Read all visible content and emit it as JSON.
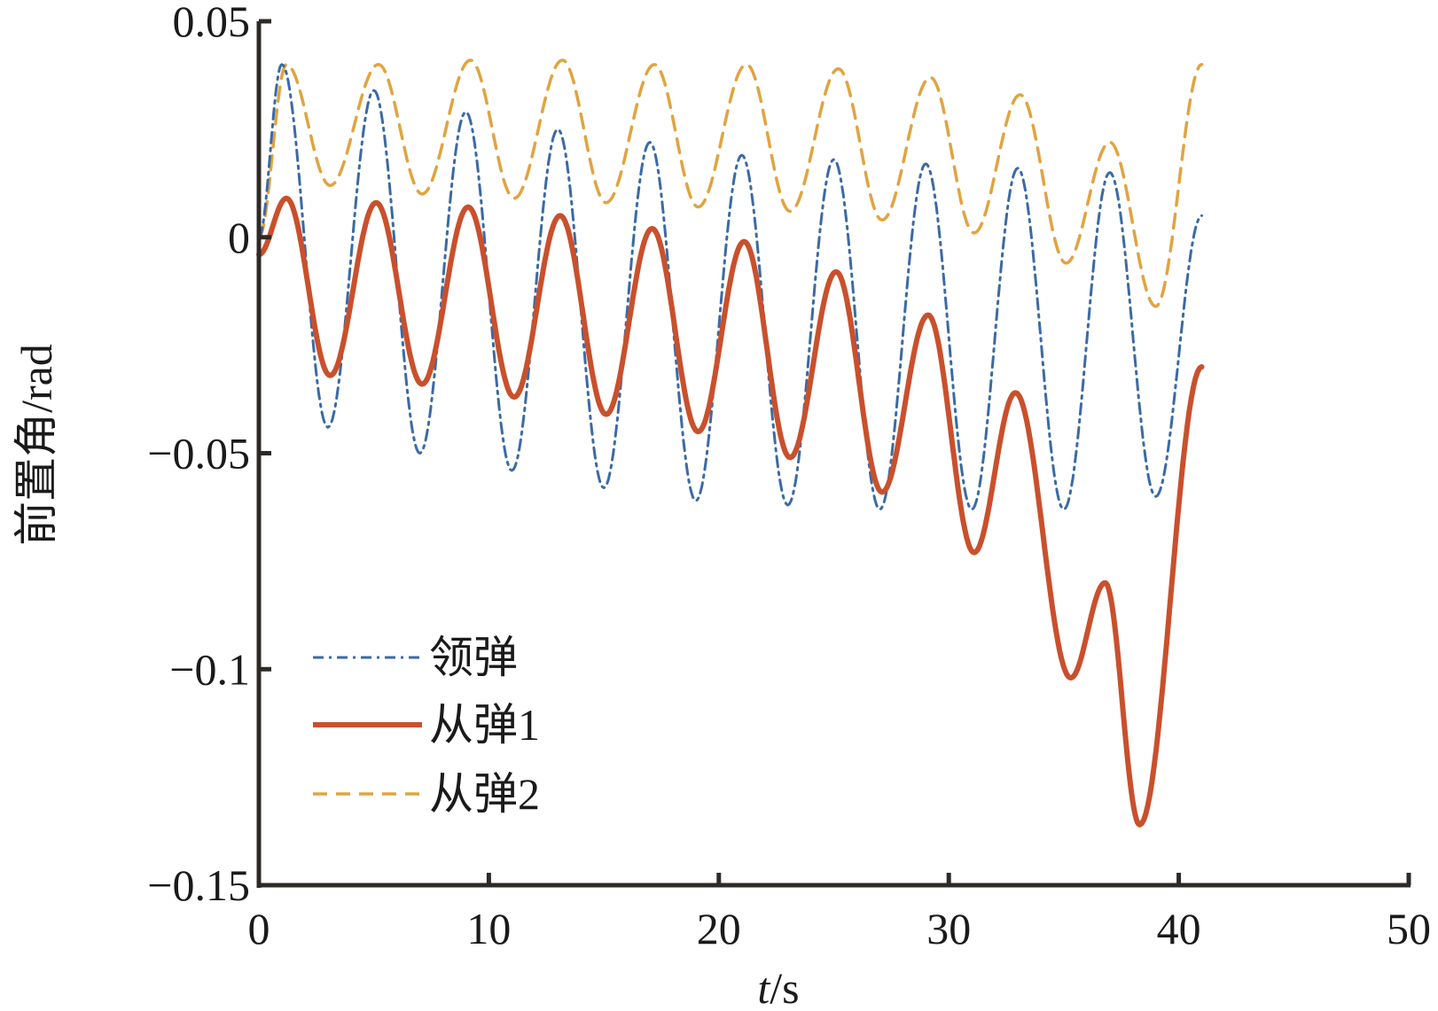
{
  "chart_data": {
    "type": "line",
    "title": "",
    "xlabel_italic": "t",
    "xlabel_rest": "/s",
    "ylabel": "前置角/rad",
    "xlim": [
      0,
      50
    ],
    "ylim": [
      -0.15,
      0.05
    ],
    "xticks": [
      0,
      10,
      20,
      30,
      40,
      50
    ],
    "xtick_labels": [
      "0",
      "10",
      "20",
      "30",
      "40",
      "50"
    ],
    "yticks": [
      0.05,
      0,
      -0.05,
      -0.1,
      -0.15
    ],
    "ytick_labels": [
      "0.05",
      "0",
      "−0.05",
      "−0.1",
      "−0.15"
    ],
    "grid": false,
    "legend_position": "lower-left",
    "series": [
      {
        "name": "领弹",
        "style": "dashdot",
        "color": "#3b6aa6",
        "start": 0.0,
        "end": 0.005,
        "t_end": 41,
        "peaks_t": [
          1,
          5,
          9,
          13,
          17,
          21,
          25,
          29,
          33,
          37
        ],
        "peaks": [
          0.04,
          0.034,
          0.029,
          0.025,
          0.022,
          0.019,
          0.018,
          0.017,
          0.016,
          0.015
        ],
        "troughs_t": [
          3,
          7,
          11,
          15,
          19,
          23,
          27,
          31,
          35,
          39
        ],
        "troughs": [
          -0.044,
          -0.05,
          -0.054,
          -0.058,
          -0.061,
          -0.062,
          -0.063,
          -0.063,
          -0.063,
          -0.06
        ]
      },
      {
        "name": "从弹1",
        "style": "solid",
        "color": "#c9502c",
        "start": -0.004,
        "end": -0.03,
        "t_end": 41,
        "peaks_t": [
          1.2,
          5.1,
          9.1,
          13.1,
          17.1,
          21.1,
          25.1,
          29.1,
          32.9,
          36.8
        ],
        "peaks": [
          0.009,
          0.008,
          0.007,
          0.005,
          0.002,
          -0.001,
          -0.008,
          -0.018,
          -0.036,
          -0.08
        ],
        "troughs_t": [
          3.1,
          7.1,
          11.1,
          15.1,
          19.1,
          23.1,
          27.1,
          31.1,
          35.3,
          38.3
        ],
        "troughs": [
          -0.032,
          -0.034,
          -0.037,
          -0.041,
          -0.045,
          -0.051,
          -0.059,
          -0.073,
          -0.102,
          -0.136
        ]
      },
      {
        "name": "从弹2",
        "style": "dashed",
        "color": "#e0a440",
        "start": 0.0,
        "end": 0.04,
        "t_end": 41,
        "peaks_t": [
          1.2,
          5.2,
          9.2,
          13.2,
          17.2,
          21.2,
          25.2,
          29.2,
          33.1,
          37.0
        ],
        "peaks": [
          0.04,
          0.04,
          0.041,
          0.041,
          0.04,
          0.04,
          0.039,
          0.037,
          0.033,
          0.022
        ],
        "troughs_t": [
          3.1,
          7.1,
          11.1,
          15.1,
          19.1,
          23.1,
          27.1,
          31.1,
          35.1,
          39.0
        ],
        "troughs": [
          0.012,
          0.01,
          0.009,
          0.008,
          0.007,
          0.006,
          0.004,
          0.001,
          -0.006,
          -0.016
        ]
      }
    ]
  }
}
